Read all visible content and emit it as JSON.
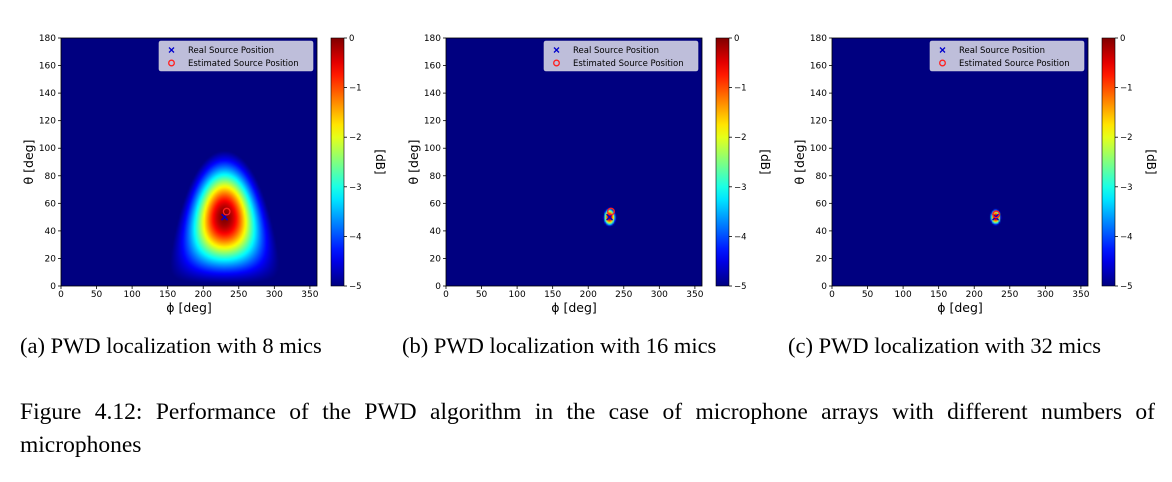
{
  "figure": {
    "caption": "Figure 4.12:  Performance of the PWD algorithm in the case of microphone arrays with different numbers of microphones"
  },
  "chart_data": [
    {
      "type": "heatmap",
      "caption": "(a) PWD localization with 8 mics",
      "xlabel": "ϕ [deg]",
      "ylabel": "θ [deg]",
      "colorbar_label": "[dB]",
      "xlim": [
        0,
        360
      ],
      "ylim": [
        0,
        180
      ],
      "clim": [
        -5,
        0
      ],
      "colormap": "jet",
      "xticks": [
        0,
        50,
        100,
        150,
        200,
        250,
        300,
        350
      ],
      "yticks": [
        0,
        20,
        40,
        60,
        80,
        100,
        120,
        140,
        160,
        180
      ],
      "cticks": [
        0,
        -1,
        -2,
        -3,
        -4,
        -5
      ],
      "legend_position": "top-right",
      "legend": [
        "Real Source Position",
        "Estimated Source Position"
      ],
      "real_source": {
        "phi": 230,
        "theta": 50
      },
      "estimated_source": {
        "phi": 233,
        "theta": 54
      },
      "beam_width_deg": 36,
      "floor_db": -6
    },
    {
      "type": "heatmap",
      "caption": "(b) PWD localization with 16 mics",
      "xlabel": "ϕ [deg]",
      "ylabel": "θ [deg]",
      "colorbar_label": "[dB]",
      "xlim": [
        0,
        360
      ],
      "ylim": [
        0,
        180
      ],
      "clim": [
        -5,
        0
      ],
      "colormap": "jet",
      "xticks": [
        0,
        50,
        100,
        150,
        200,
        250,
        300,
        350
      ],
      "yticks": [
        0,
        20,
        40,
        60,
        80,
        100,
        120,
        140,
        160,
        180
      ],
      "cticks": [
        0,
        -1,
        -2,
        -3,
        -4,
        -5
      ],
      "legend_position": "top-right",
      "legend": [
        "Real Source Position",
        "Estimated Source Position"
      ],
      "real_source": {
        "phi": 230,
        "theta": 50
      },
      "estimated_source": {
        "phi": 232,
        "theta": 54
      },
      "beam_width_deg": 12.5,
      "floor_db": -20
    },
    {
      "type": "heatmap",
      "caption": "(c) PWD localization with 32 mics",
      "xlabel": "ϕ [deg]",
      "ylabel": "θ [deg]",
      "colorbar_label": "[dB]",
      "xlim": [
        0,
        360
      ],
      "ylim": [
        0,
        180
      ],
      "clim": [
        -5,
        0
      ],
      "colormap": "jet",
      "xticks": [
        0,
        50,
        100,
        150,
        200,
        250,
        300,
        350
      ],
      "yticks": [
        0,
        20,
        40,
        60,
        80,
        100,
        120,
        140,
        160,
        180
      ],
      "cticks": [
        0,
        -1,
        -2,
        -3,
        -4,
        -5
      ],
      "legend_position": "top-right",
      "legend": [
        "Real Source Position",
        "Estimated Source Position"
      ],
      "real_source": {
        "phi": 230,
        "theta": 50
      },
      "estimated_source": {
        "phi": 231,
        "theta": 52
      },
      "beam_width_deg": 11,
      "floor_db": -20
    }
  ]
}
